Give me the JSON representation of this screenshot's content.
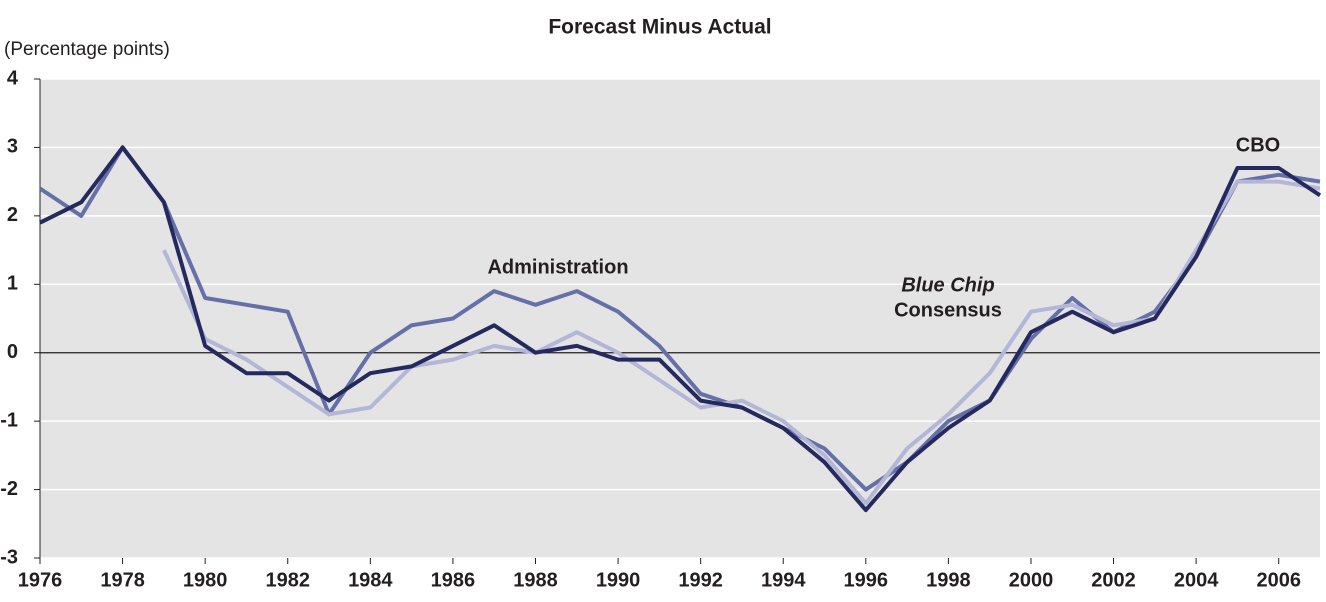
{
  "chart_data": {
    "type": "line",
    "title": "Forecast Minus Actual",
    "y_label": "(Percentage points)",
    "x": [
      1976,
      1977,
      1978,
      1979,
      1980,
      1981,
      1982,
      1983,
      1984,
      1985,
      1986,
      1987,
      1988,
      1989,
      1990,
      1991,
      1992,
      1993,
      1994,
      1995,
      1996,
      1997,
      1998,
      1999,
      2000,
      2001,
      2002,
      2003,
      2004,
      2005,
      2006,
      2007
    ],
    "series": [
      {
        "name": "Administration",
        "color": "#6670a8",
        "values": [
          2.4,
          2.0,
          3.0,
          2.2,
          0.8,
          0.7,
          0.6,
          -0.9,
          0.0,
          0.4,
          0.5,
          0.9,
          0.7,
          0.9,
          0.6,
          0.1,
          -0.6,
          -0.8,
          -1.1,
          -1.4,
          -2.0,
          -1.6,
          -1.0,
          -0.7,
          0.2,
          0.8,
          0.3,
          0.6,
          1.4,
          2.5,
          2.6,
          2.5
        ]
      },
      {
        "name": "Blue Chip Consensus",
        "color": "#b3b6d6",
        "values": [
          null,
          null,
          null,
          1.5,
          0.2,
          -0.1,
          -0.5,
          -0.9,
          -0.8,
          -0.2,
          -0.1,
          0.1,
          0.0,
          0.3,
          0.0,
          -0.4,
          -0.8,
          -0.7,
          -1.0,
          -1.5,
          -2.2,
          -1.4,
          -0.9,
          -0.3,
          0.6,
          0.7,
          0.4,
          0.5,
          1.5,
          2.5,
          2.5,
          2.4
        ]
      },
      {
        "name": "CBO",
        "color": "#252a5e",
        "values": [
          1.9,
          2.2,
          3.0,
          2.2,
          0.1,
          -0.3,
          -0.3,
          -0.7,
          -0.3,
          -0.2,
          0.1,
          0.4,
          0.0,
          0.1,
          -0.1,
          -0.1,
          -0.7,
          -0.8,
          -1.1,
          -1.6,
          -2.3,
          -1.6,
          -1.1,
          -0.7,
          0.3,
          0.6,
          0.3,
          0.5,
          1.4,
          2.7,
          2.7,
          2.3
        ]
      }
    ],
    "annotations": [
      "Administration",
      "Blue Chip",
      "Consensus",
      "CBO"
    ],
    "xlim": [
      1976,
      2007
    ],
    "xticks": [
      1976,
      1978,
      1980,
      1982,
      1984,
      1986,
      1988,
      1990,
      1992,
      1994,
      1996,
      1998,
      2000,
      2002,
      2004,
      2006
    ],
    "ylim": [
      -3,
      4
    ],
    "yticks": [
      -3,
      -2,
      -1,
      0,
      1,
      2,
      3,
      4
    ],
    "grid": true,
    "background": "#e4e4e5"
  }
}
